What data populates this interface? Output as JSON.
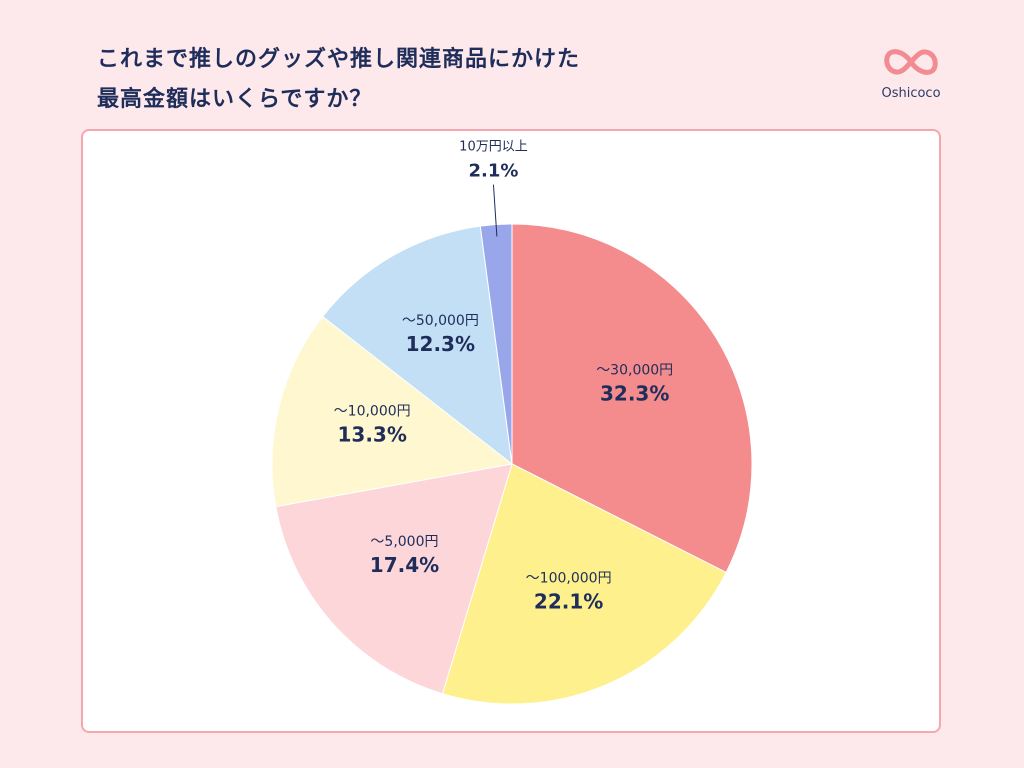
{
  "header": {
    "title_line1": "これまで推しのグッズや推し関連商品にかけた",
    "title_line2": "最高金額はいくらですか？"
  },
  "brand": {
    "name": "Oshicoco",
    "logo_color": "#f28b92",
    "logo_icon": "infinity-heart-icon"
  },
  "chart_data": {
    "type": "pie",
    "start": "12 o'clock",
    "direction": "clockwise",
    "slices": [
      {
        "label": "～30,000円",
        "value": 32.3,
        "display": "32.3%",
        "color": "#f48c8e"
      },
      {
        "label": "～100,000円",
        "value": 22.1,
        "display": "22.1%",
        "color": "#fef08c"
      },
      {
        "label": "～5,000円",
        "value": 17.4,
        "display": "17.4%",
        "color": "#fdd6da"
      },
      {
        "label": "～10,000円",
        "value": 13.3,
        "display": "13.3%",
        "color": "#fef7cf"
      },
      {
        "label": "～50,000円",
        "value": 12.3,
        "display": "12.3%",
        "color": "#c2dff5"
      },
      {
        "label": "10万円以上",
        "value": 2.1,
        "display": "2.1%",
        "color": "#9aa6ea"
      }
    ]
  }
}
